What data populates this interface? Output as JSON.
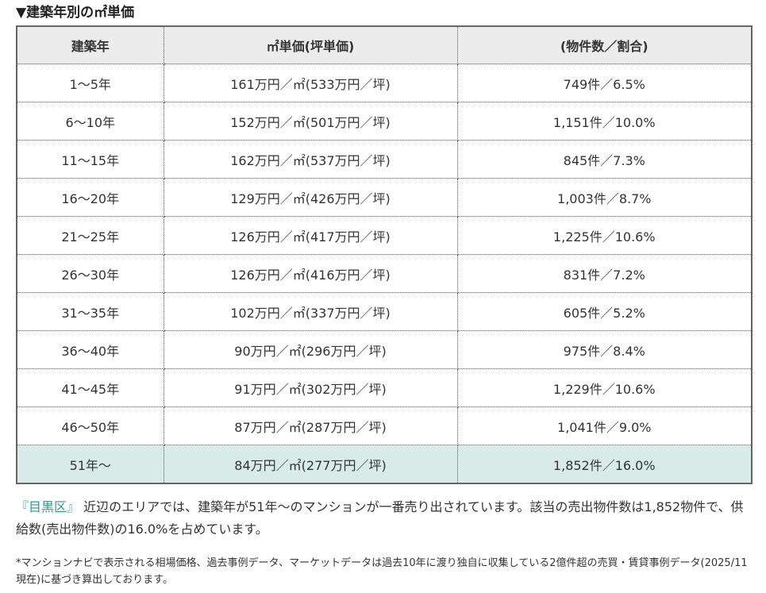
{
  "section_title": "▼建築年別の㎡単価",
  "table": {
    "headers": [
      "建築年",
      "㎡単価(坪単価)",
      "(物件数／割合)"
    ],
    "rows": [
      {
        "age": "1～5年",
        "price": "161万円／㎡(533万円／坪)",
        "count": "749件／6.5%"
      },
      {
        "age": "6～10年",
        "price": "152万円／㎡(501万円／坪)",
        "count": "1,151件／10.0%"
      },
      {
        "age": "11～15年",
        "price": "162万円／㎡(537万円／坪)",
        "count": "845件／7.3%"
      },
      {
        "age": "16～20年",
        "price": "129万円／㎡(426万円／坪)",
        "count": "1,003件／8.7%"
      },
      {
        "age": "21～25年",
        "price": "126万円／㎡(417万円／坪)",
        "count": "1,225件／10.6%"
      },
      {
        "age": "26～30年",
        "price": "126万円／㎡(416万円／坪)",
        "count": "831件／7.2%"
      },
      {
        "age": "31～35年",
        "price": "102万円／㎡(337万円／坪)",
        "count": "605件／5.2%"
      },
      {
        "age": "36～40年",
        "price": "90万円／㎡(296万円／坪)",
        "count": "975件／8.4%"
      },
      {
        "age": "41～45年",
        "price": "91万円／㎡(302万円／坪)",
        "count": "1,229件／10.6%"
      },
      {
        "age": "46～50年",
        "price": "87万円／㎡(287万円／坪)",
        "count": "1,041件／9.0%"
      },
      {
        "age": "51年～",
        "price": "84万円／㎡(277万円／坪)",
        "count": "1,852件／16.0%",
        "highlighted": true
      }
    ]
  },
  "summary": {
    "area_link": "『目黒区』",
    "text": "近辺のエリアでは、建築年が51年～のマンションが一番売り出されています。該当の売出物件数は1,852物件で、供給数(売出物件数)の16.0%を占めています。"
  },
  "footnote": "*マンションナビで表示される相場価格、過去事例データ、マーケットデータは過去10年に渡り独自に収集している2億件超の売買・賃貸事例データ(2025/11現在)に基づき算出しております。",
  "colors": {
    "header_bg": "#ececec",
    "highlight_row_bg": "#d8ebe8",
    "link": "#2b9a95",
    "border": "#666666"
  }
}
